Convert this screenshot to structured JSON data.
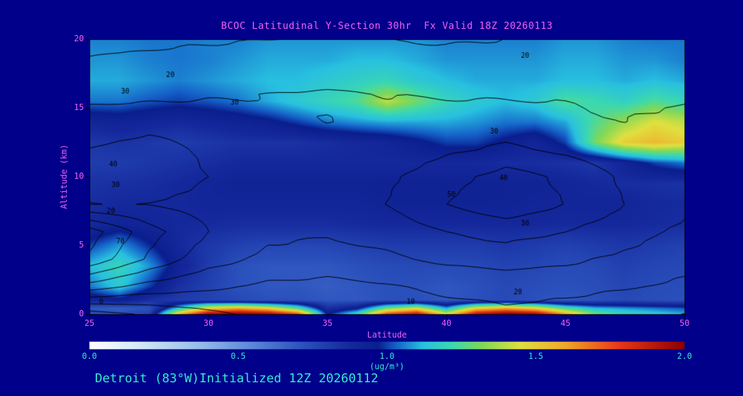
{
  "colors": {
    "background": "#00008b",
    "magenta": "#f060f0",
    "cyan": "#35e8d0",
    "contour": "#000000",
    "frame": "#000000"
  },
  "chart_data": {
    "type": "heatmap",
    "title": "BCOC Latitudinal Y-Section 30hr  Fx Valid 18Z 20260113",
    "footer": "Detroit (83°W)Initialized 12Z 20260112",
    "xlabel": "Latitude",
    "ylabel": "Altitude (km)",
    "xlim": [
      25,
      50
    ],
    "ylim": [
      0,
      20
    ],
    "x_ticks": [
      25,
      30,
      35,
      40,
      45,
      50
    ],
    "y_ticks": [
      0,
      5,
      10,
      15,
      20
    ],
    "x_lat": [
      25,
      26.25,
      27.5,
      28.75,
      30,
      31.25,
      32.5,
      33.75,
      35,
      36.25,
      37.5,
      38.75,
      40,
      41.25,
      42.5,
      43.75,
      45,
      46.25,
      47.5,
      48.75,
      50
    ],
    "y_alt": [
      0,
      0.4,
      1,
      2,
      3.5,
      5,
      6.5,
      8,
      9.5,
      11,
      12.5,
      14,
      15.5,
      17,
      18.5,
      20
    ],
    "values": [
      [
        0.75,
        0.72,
        0.78,
        1.55,
        1.95,
        2.0,
        1.95,
        1.75,
        0.95,
        1.2,
        1.75,
        1.9,
        1.45,
        1.9,
        2.0,
        1.95,
        1.6,
        1.3,
        1.2,
        1.15,
        1.1
      ],
      [
        0.7,
        0.68,
        0.72,
        1.15,
        1.5,
        1.6,
        1.5,
        1.25,
        0.85,
        0.95,
        1.3,
        1.45,
        1.1,
        1.5,
        1.6,
        1.5,
        1.25,
        1.12,
        1.08,
        1.05,
        1.02
      ],
      [
        0.9,
        0.95,
        0.85,
        0.8,
        0.78,
        0.75,
        0.72,
        0.72,
        0.7,
        0.7,
        0.72,
        0.72,
        0.7,
        0.72,
        0.75,
        0.72,
        0.7,
        0.72,
        0.75,
        0.73,
        0.72
      ],
      [
        1.05,
        1.15,
        1.0,
        0.85,
        0.78,
        0.72,
        0.7,
        0.7,
        0.68,
        0.7,
        0.72,
        0.72,
        0.7,
        0.72,
        0.75,
        0.73,
        0.72,
        0.73,
        0.76,
        0.74,
        0.73
      ],
      [
        1.12,
        1.2,
        1.08,
        0.92,
        0.8,
        0.72,
        0.7,
        0.7,
        0.7,
        0.72,
        0.74,
        0.75,
        0.74,
        0.75,
        0.77,
        0.76,
        0.74,
        0.75,
        0.78,
        0.76,
        0.75
      ],
      [
        1.0,
        1.08,
        0.98,
        0.88,
        0.82,
        0.78,
        0.76,
        0.76,
        0.76,
        0.78,
        0.8,
        0.8,
        0.8,
        0.8,
        0.82,
        0.8,
        0.78,
        0.8,
        0.82,
        0.8,
        0.78
      ],
      [
        0.88,
        0.92,
        0.9,
        0.88,
        0.87,
        0.86,
        0.86,
        0.86,
        0.86,
        0.87,
        0.88,
        0.88,
        0.88,
        0.88,
        0.88,
        0.88,
        0.87,
        0.88,
        0.88,
        0.87,
        0.86
      ],
      [
        0.86,
        0.88,
        0.88,
        0.88,
        0.9,
        0.9,
        0.9,
        0.9,
        0.9,
        0.9,
        0.92,
        0.92,
        0.92,
        0.92,
        0.92,
        0.9,
        0.9,
        0.9,
        0.9,
        0.88,
        0.87
      ],
      [
        0.84,
        0.85,
        0.86,
        0.88,
        0.9,
        0.92,
        0.92,
        0.92,
        0.92,
        0.92,
        0.93,
        0.93,
        0.93,
        0.93,
        0.92,
        0.92,
        0.9,
        0.88,
        0.86,
        0.85,
        0.84
      ],
      [
        0.8,
        0.8,
        0.82,
        0.84,
        0.86,
        0.88,
        0.88,
        0.88,
        0.88,
        0.88,
        0.88,
        0.88,
        0.88,
        0.88,
        0.86,
        0.86,
        0.84,
        0.82,
        0.9,
        1.0,
        1.05
      ],
      [
        0.82,
        0.84,
        0.82,
        0.8,
        0.82,
        0.84,
        0.84,
        0.84,
        0.86,
        0.88,
        0.9,
        0.95,
        1.0,
        1.0,
        0.95,
        0.9,
        1.0,
        1.3,
        1.5,
        1.55,
        1.5
      ],
      [
        0.9,
        0.92,
        0.9,
        0.88,
        0.9,
        0.92,
        0.95,
        1.0,
        1.05,
        1.08,
        1.1,
        1.1,
        1.1,
        1.08,
        1.05,
        1.05,
        1.1,
        1.25,
        1.35,
        1.45,
        1.4
      ],
      [
        1.05,
        1.05,
        1.02,
        1.0,
        1.02,
        1.05,
        1.1,
        1.15,
        1.2,
        1.25,
        1.4,
        1.3,
        1.2,
        1.15,
        1.12,
        1.15,
        1.25,
        1.22,
        1.18,
        1.25,
        1.2
      ],
      [
        1.1,
        1.1,
        1.08,
        1.06,
        1.08,
        1.1,
        1.12,
        1.12,
        1.15,
        1.18,
        1.2,
        1.15,
        1.12,
        1.1,
        1.1,
        1.1,
        1.12,
        1.12,
        1.1,
        1.12,
        1.1
      ],
      [
        1.08,
        1.08,
        1.06,
        1.05,
        1.06,
        1.08,
        1.1,
        1.1,
        1.1,
        1.12,
        1.12,
        1.1,
        1.08,
        1.08,
        1.08,
        1.08,
        1.1,
        1.1,
        1.08,
        1.08,
        1.06
      ],
      [
        1.06,
        1.06,
        1.05,
        1.05,
        1.06,
        1.06,
        1.08,
        1.08,
        1.08,
        1.08,
        1.08,
        1.08,
        1.06,
        1.06,
        1.06,
        1.06,
        1.08,
        1.08,
        1.06,
        1.05,
        1.05
      ]
    ],
    "contour": {
      "levels": [
        0,
        10,
        20,
        30,
        40,
        50,
        60,
        70
      ],
      "x_lat": [
        25,
        27.5,
        30,
        32.5,
        35,
        37.5,
        40,
        42.5,
        45,
        47.5,
        50
      ],
      "y_alt": [
        0,
        2,
        4,
        6,
        8,
        10,
        12,
        14,
        16,
        18,
        20
      ],
      "values": [
        [
          -5,
          2,
          8,
          12,
          12,
          14,
          16,
          18,
          16,
          12,
          10
        ],
        [
          35,
          26,
          22,
          18,
          17,
          19,
          22,
          24,
          23,
          21,
          18
        ],
        [
          68,
          48,
          34,
          28,
          26,
          28,
          32,
          34,
          32,
          28,
          24
        ],
        [
          75,
          54,
          40,
          32,
          31,
          34,
          40,
          44,
          40,
          34,
          28
        ],
        [
          40,
          40,
          36,
          33,
          34,
          40,
          50,
          57,
          50,
          40,
          32
        ],
        [
          44,
          47,
          40,
          34,
          33,
          38,
          46,
          54,
          48,
          38,
          34
        ],
        [
          40,
          45,
          38,
          33,
          32,
          34,
          38,
          42,
          38,
          33,
          34
        ],
        [
          33,
          35,
          34,
          31,
          30,
          32,
          34,
          34,
          32,
          30,
          32
        ],
        [
          28,
          28,
          29,
          30,
          31,
          30,
          29,
          29,
          29,
          28,
          29
        ],
        [
          22,
          23,
          24,
          25,
          25,
          24,
          24,
          24,
          25,
          25,
          24
        ],
        [
          17,
          18,
          19,
          20,
          21,
          20,
          19,
          20,
          21,
          22,
          21
        ]
      ]
    },
    "contour_labels": [
      {
        "text": "20",
        "lat": 28.4,
        "alt": 17.4
      },
      {
        "text": "30",
        "lat": 26.5,
        "alt": 16.2
      },
      {
        "text": "30",
        "lat": 31.1,
        "alt": 15.4
      },
      {
        "text": "20",
        "lat": 43.3,
        "alt": 18.8
      },
      {
        "text": "30",
        "lat": 42.0,
        "alt": 13.3
      },
      {
        "text": "40",
        "lat": 26.0,
        "alt": 10.9
      },
      {
        "text": "30",
        "lat": 26.1,
        "alt": 9.4
      },
      {
        "text": "20",
        "lat": 25.9,
        "alt": 7.5
      },
      {
        "text": "70",
        "lat": 26.3,
        "alt": 5.3
      },
      {
        "text": "50",
        "lat": 40.2,
        "alt": 8.7
      },
      {
        "text": "40",
        "lat": 42.4,
        "alt": 9.9
      },
      {
        "text": "30",
        "lat": 43.3,
        "alt": 6.6
      },
      {
        "text": "20",
        "lat": 43.0,
        "alt": 1.6
      },
      {
        "text": "0",
        "lat": 25.5,
        "alt": 0.9
      },
      {
        "text": "10",
        "lat": 38.5,
        "alt": 0.9
      }
    ],
    "colorbar": {
      "min": 0.0,
      "max": 2.0,
      "tick_labels": [
        "0.0",
        "0.5",
        "1.0",
        "1.5",
        "2.0"
      ],
      "unit_label": "(ug/m³)",
      "stops": [
        [
          0.0,
          "#ffffff"
        ],
        [
          0.15,
          "#d8ecf8"
        ],
        [
          0.35,
          "#9cc2ec"
        ],
        [
          0.55,
          "#5a86d8"
        ],
        [
          0.72,
          "#2a50bc"
        ],
        [
          0.88,
          "#14289c"
        ],
        [
          0.97,
          "#0a1e8e"
        ],
        [
          1.03,
          "#1560c8"
        ],
        [
          1.12,
          "#28c0e0"
        ],
        [
          1.22,
          "#3cd8b0"
        ],
        [
          1.32,
          "#80d858"
        ],
        [
          1.45,
          "#e0e040"
        ],
        [
          1.6,
          "#f0a828"
        ],
        [
          1.78,
          "#e83818"
        ],
        [
          2.0,
          "#8e0000"
        ]
      ]
    }
  }
}
